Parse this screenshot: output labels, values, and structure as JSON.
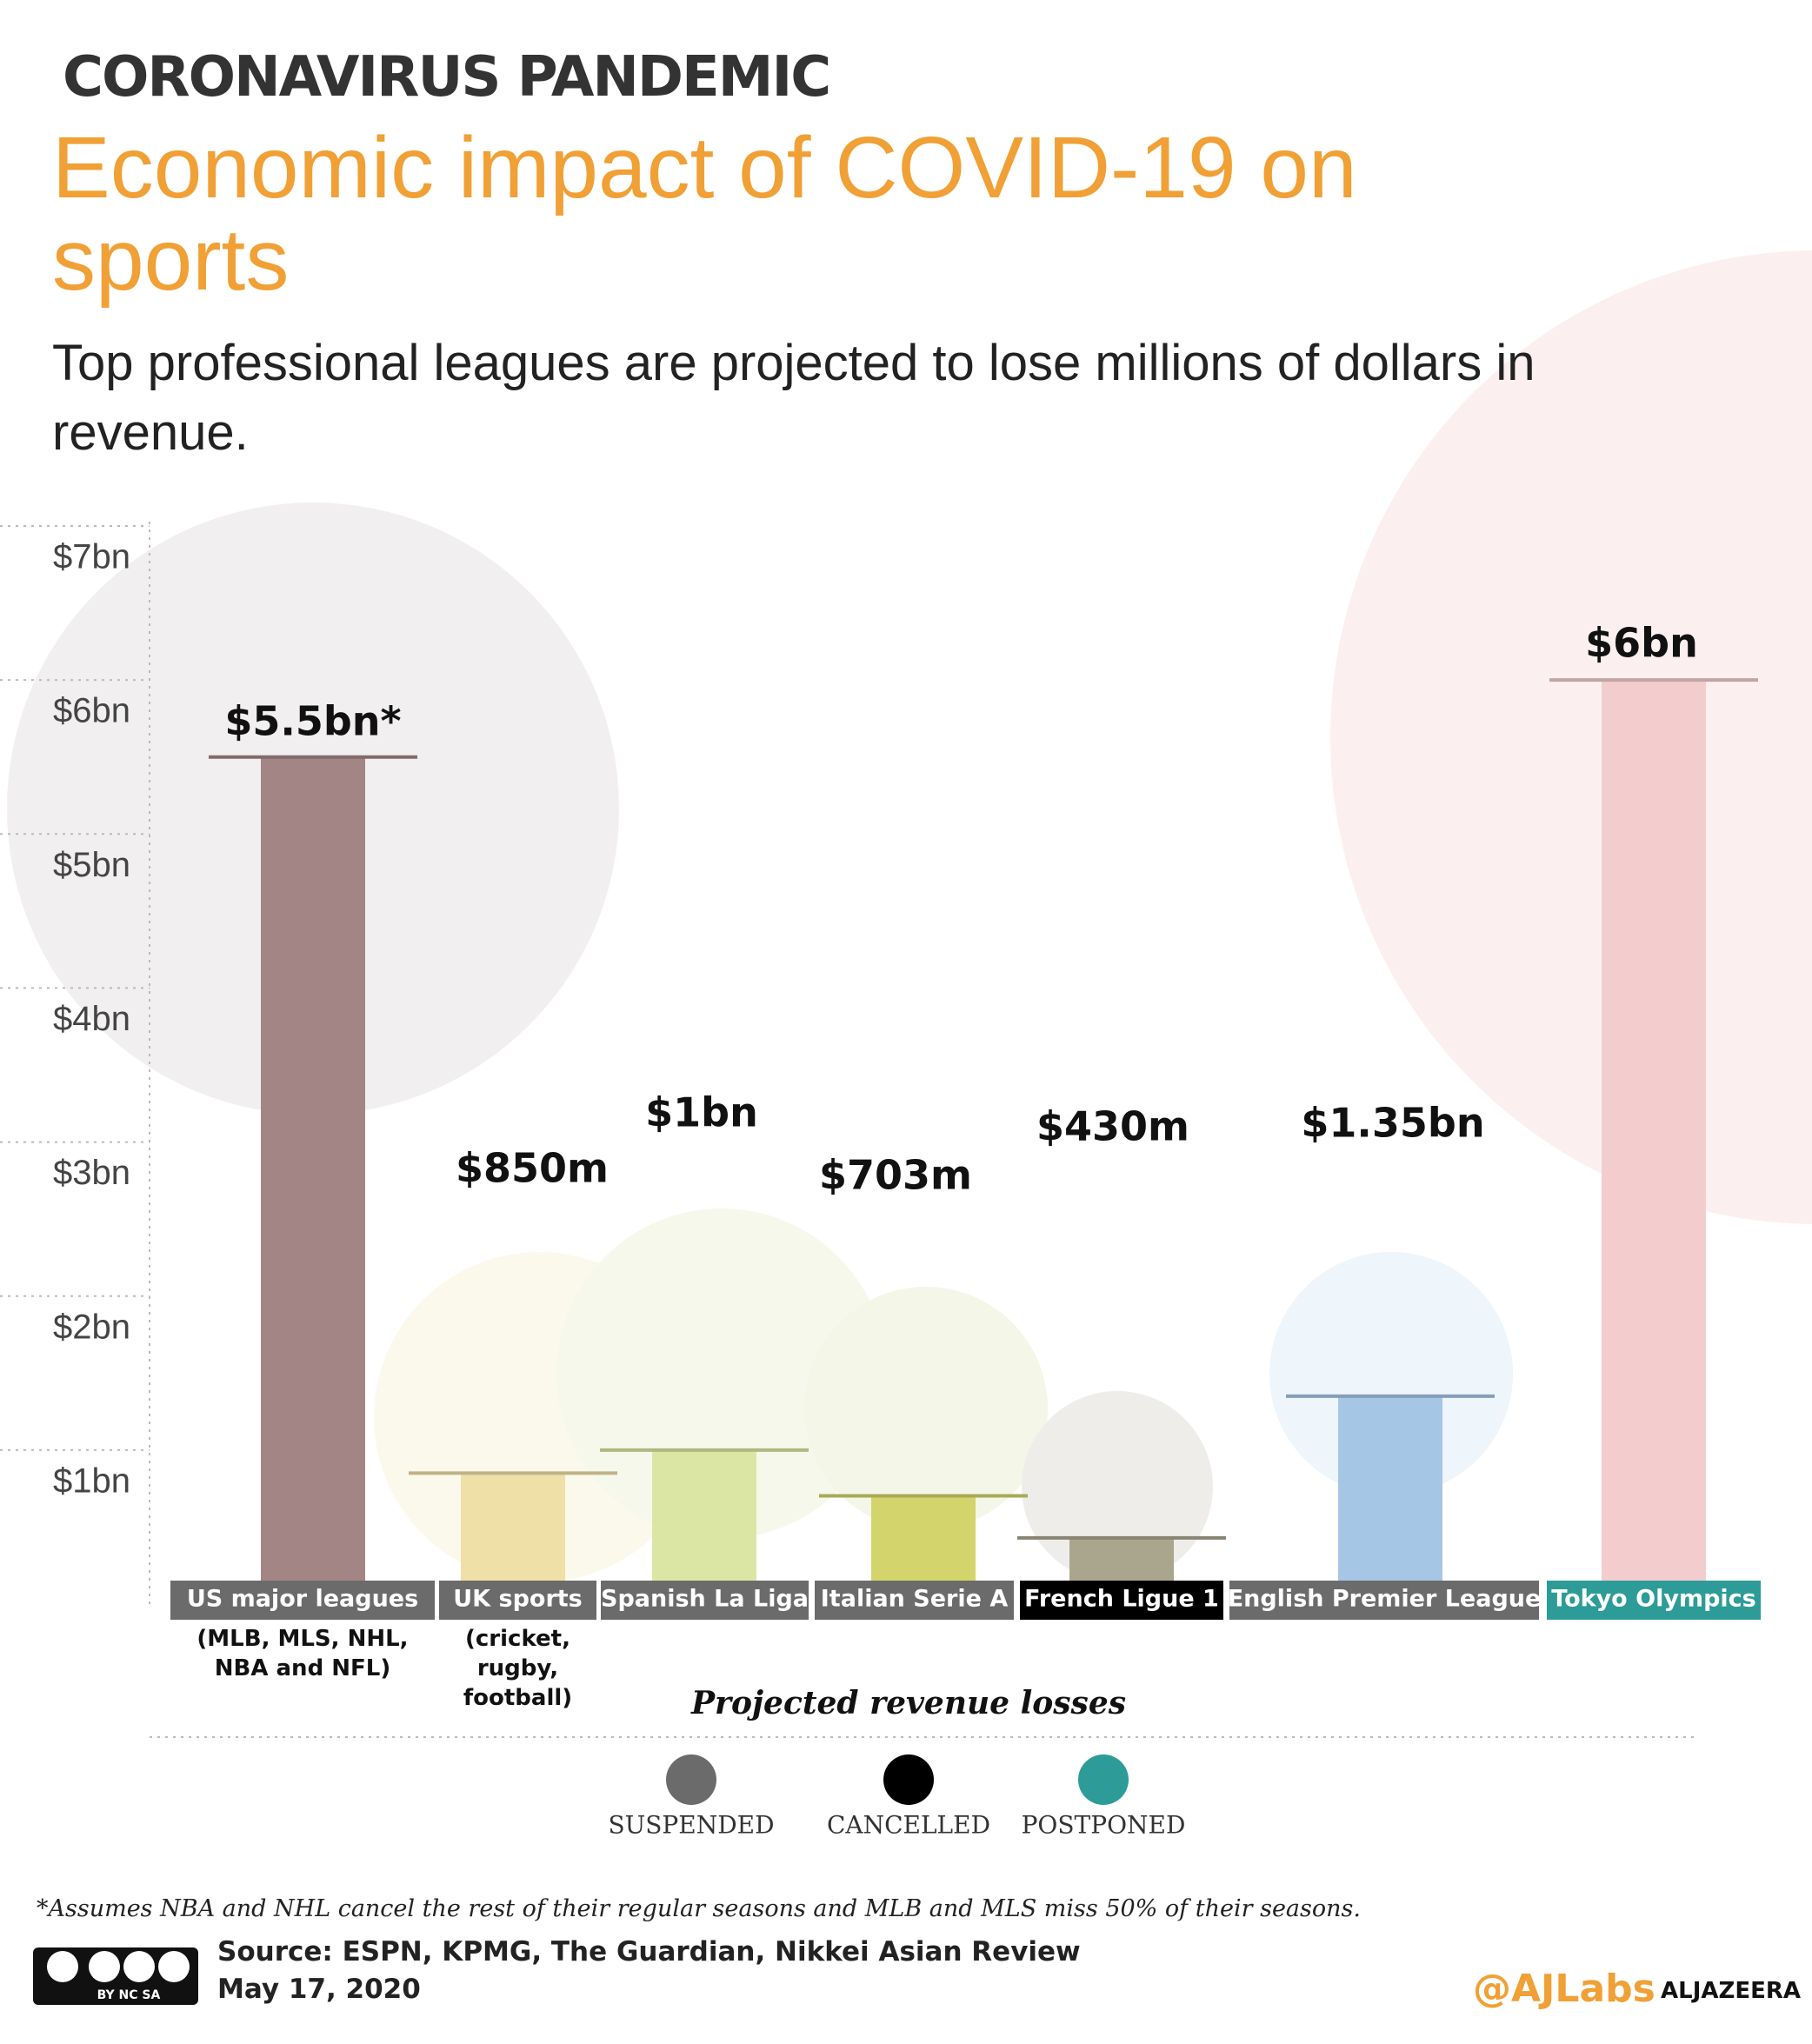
{
  "kicker": "CORONAVIRUS PANDEMIC",
  "chart_data": {
    "type": "bar",
    "title": "Economic impact of COVID-19 on sports",
    "subtitle": "Top professional leagues are projected to lose millions of dollars in revenue.",
    "categories": [
      "US major leagues",
      "UK sports",
      "Spanish La Liga",
      "Italian Serie A",
      "French Ligue 1",
      "English Premier League",
      "Tokyo Olympics"
    ],
    "category_notes": [
      "(MLB, MLS, NHL, NBA and NFL)",
      "(cricket, rugby, football)",
      null,
      null,
      null,
      null,
      null
    ],
    "values": [
      5.5,
      0.85,
      1,
      0.703,
      0.43,
      1.35,
      6
    ],
    "value_labels": [
      "$5.5bn*",
      "$850m",
      "$1bn",
      "$703m",
      "$430m",
      "$1.35bn",
      "$6bn"
    ],
    "colors": [
      "#a38585",
      "#efe0a8",
      "#dbe6a4",
      "#d3d56c",
      "#aaa68e",
      "#a6c6e6",
      "#f3cdcd"
    ],
    "label_colors": [
      "#6b6b6b",
      "#6b6b6b",
      "#6b6b6b",
      "#6b6b6b",
      "#000000",
      "#6b6b6b",
      "#2d9c98"
    ],
    "ylim": [
      0,
      7
    ],
    "yticks": [
      {
        "value": 1,
        "label": "$1bn"
      },
      {
        "value": 2,
        "label": "$2bn"
      },
      {
        "value": 3,
        "label": "$3bn"
      },
      {
        "value": 4,
        "label": "$4bn"
      },
      {
        "value": 5,
        "label": "$5bn"
      },
      {
        "value": 6,
        "label": "$6bn"
      },
      {
        "value": 7,
        "label": "$7bn"
      }
    ],
    "grid": true,
    "x_label": "Projected revenue losses",
    "legend": [
      {
        "name": "SUSPENDED",
        "color": "#6b6b6b"
      },
      {
        "name": "CANCELLED",
        "color": "#000000"
      },
      {
        "name": "POSTPONED",
        "color": "#2d9c98"
      }
    ]
  },
  "footnote": "*Assumes NBA and NHL cancel the rest of their regular seasons and MLB and MLS miss 50% of their seasons.",
  "source": "Source: ESPN, KPMG, The Guardian, Nikkei Asian Review",
  "date": "May 17, 2020",
  "license": "BY NC SA",
  "handle": "@AJLabs",
  "brand": "ALJAZEERA"
}
